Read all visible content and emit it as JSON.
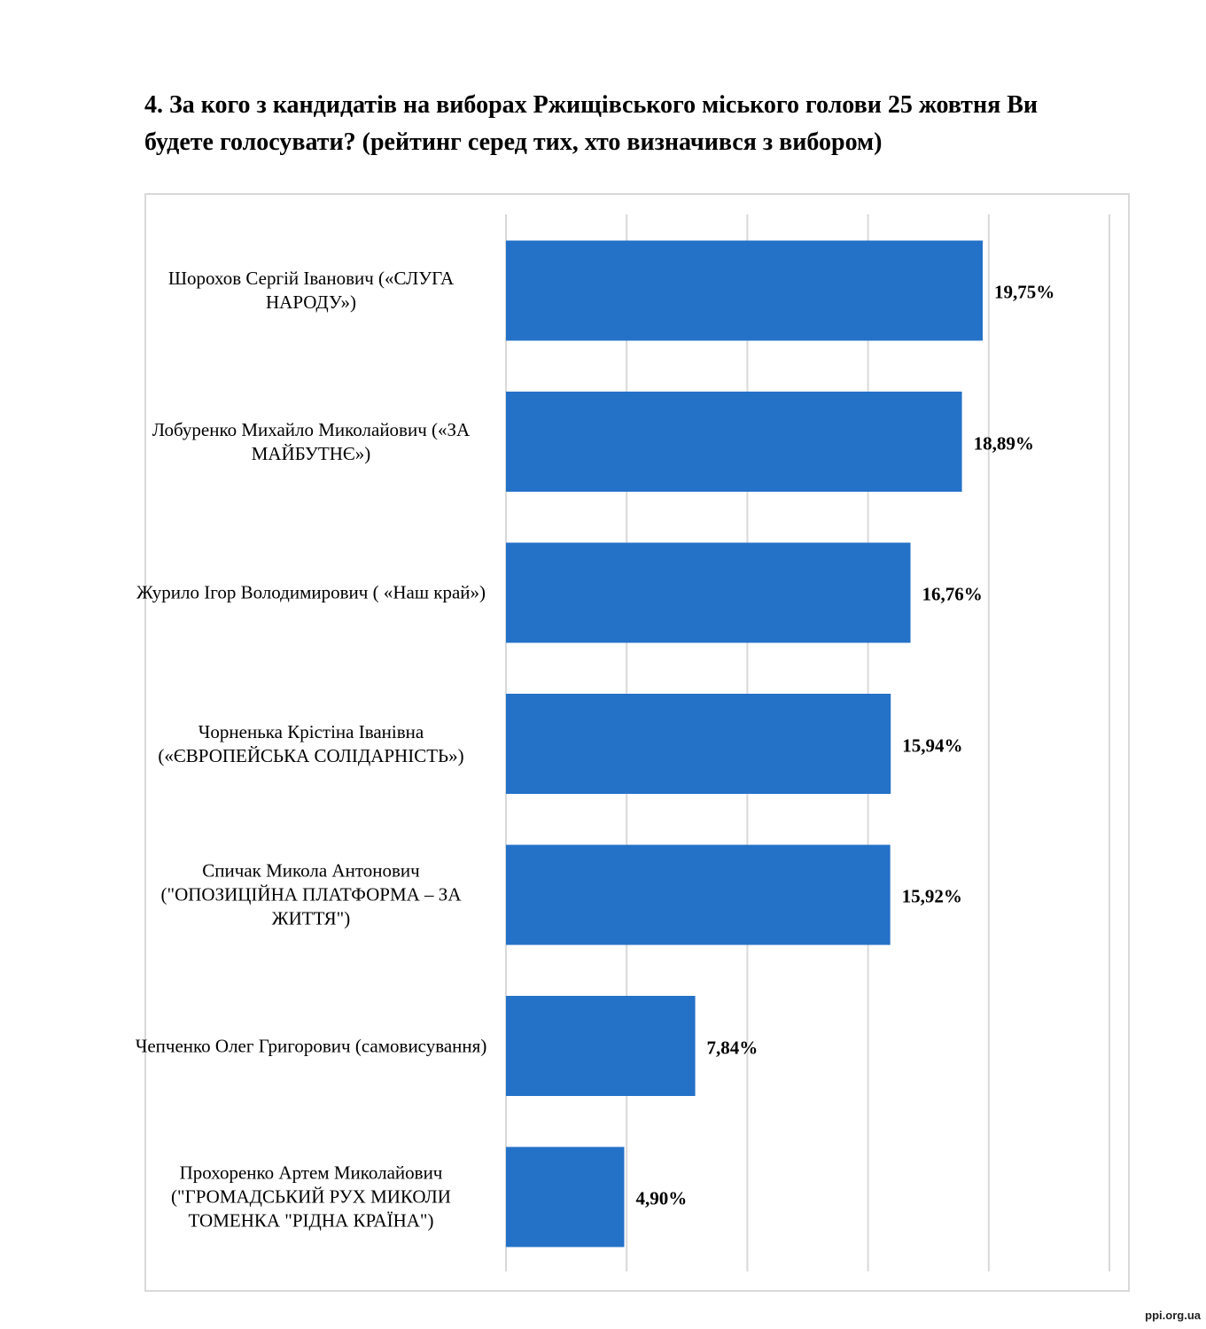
{
  "title": "4. За кого з кандидатів на виборах Ржищівського міського голови 25 жовтня Ви будете голосувати? (рейтинг серед тих, хто визначився з вибором)",
  "watermark": "ppi.org.ua",
  "chart_data": {
    "type": "bar",
    "orientation": "horizontal",
    "categories": [
      "Шорохов Сергій Іванович («СЛУГА НАРОДУ»)",
      "Лобуренко Михайло Миколайович («ЗА МАЙБУТНЄ»)",
      "Журило Ігор Володимирович ( «Наш край»)",
      "Чорненька Крістіна Іванівна («ЄВРОПЕЙСЬКА СОЛІДАРНІСТЬ»)",
      "Спичак Микола Антонович (\"ОПОЗИЦІЙНА ПЛАТФОРМА – ЗА ЖИТТЯ\")",
      "Чепченко Олег Григорович (самовисування)",
      "Прохоренко Артем Миколайович (\"ГРОМАДСЬКИЙ РУХ МИКОЛИ ТОМЕНКА \"РІДНА КРАЇНА\")"
    ],
    "values": [
      19.75,
      18.89,
      16.76,
      15.94,
      15.92,
      7.84,
      4.9
    ],
    "value_labels": [
      "19,75%",
      "18,89%",
      "16,76%",
      "15,94%",
      "15,92%",
      "7,84%",
      "4,90%"
    ],
    "xlim": [
      0,
      25
    ],
    "grid": true,
    "bar_color": "#2471C8",
    "grid_color": "#d9d9d9"
  }
}
